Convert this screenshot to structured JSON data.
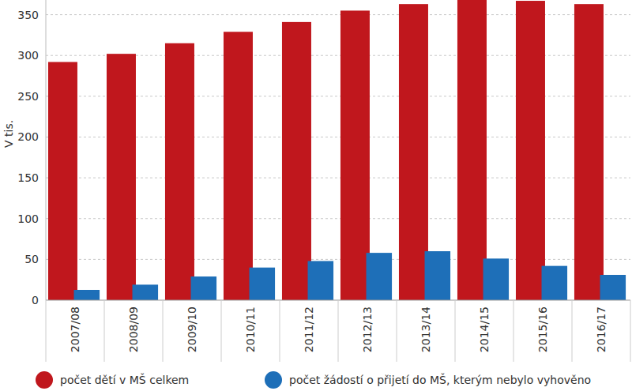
{
  "chart_data": {
    "type": "bar",
    "y_label": "V tis.",
    "categories": [
      "2007/08",
      "2008/09",
      "2009/10",
      "2010/11",
      "2011/12",
      "2012/13",
      "2013/14",
      "2014/15",
      "2015/16",
      "2016/17"
    ],
    "series": [
      {
        "name": "počet dětí v MŠ celkem",
        "color": "#c0171d",
        "values": [
          292,
          302,
          315,
          329,
          341,
          355,
          363,
          368,
          367,
          363
        ]
      },
      {
        "name": "počet žádostí o přijetí do MŠ, kterým nebylo vyhověno",
        "color": "#1e6fb8",
        "values": [
          12.6,
          19,
          29,
          40,
          48,
          58,
          60,
          51,
          42,
          31
        ]
      }
    ],
    "ylim": [
      0,
      368
    ],
    "yticks": [
      0,
      50,
      100,
      150,
      200,
      250,
      300,
      350
    ],
    "grid": true,
    "legend": "bottom"
  }
}
